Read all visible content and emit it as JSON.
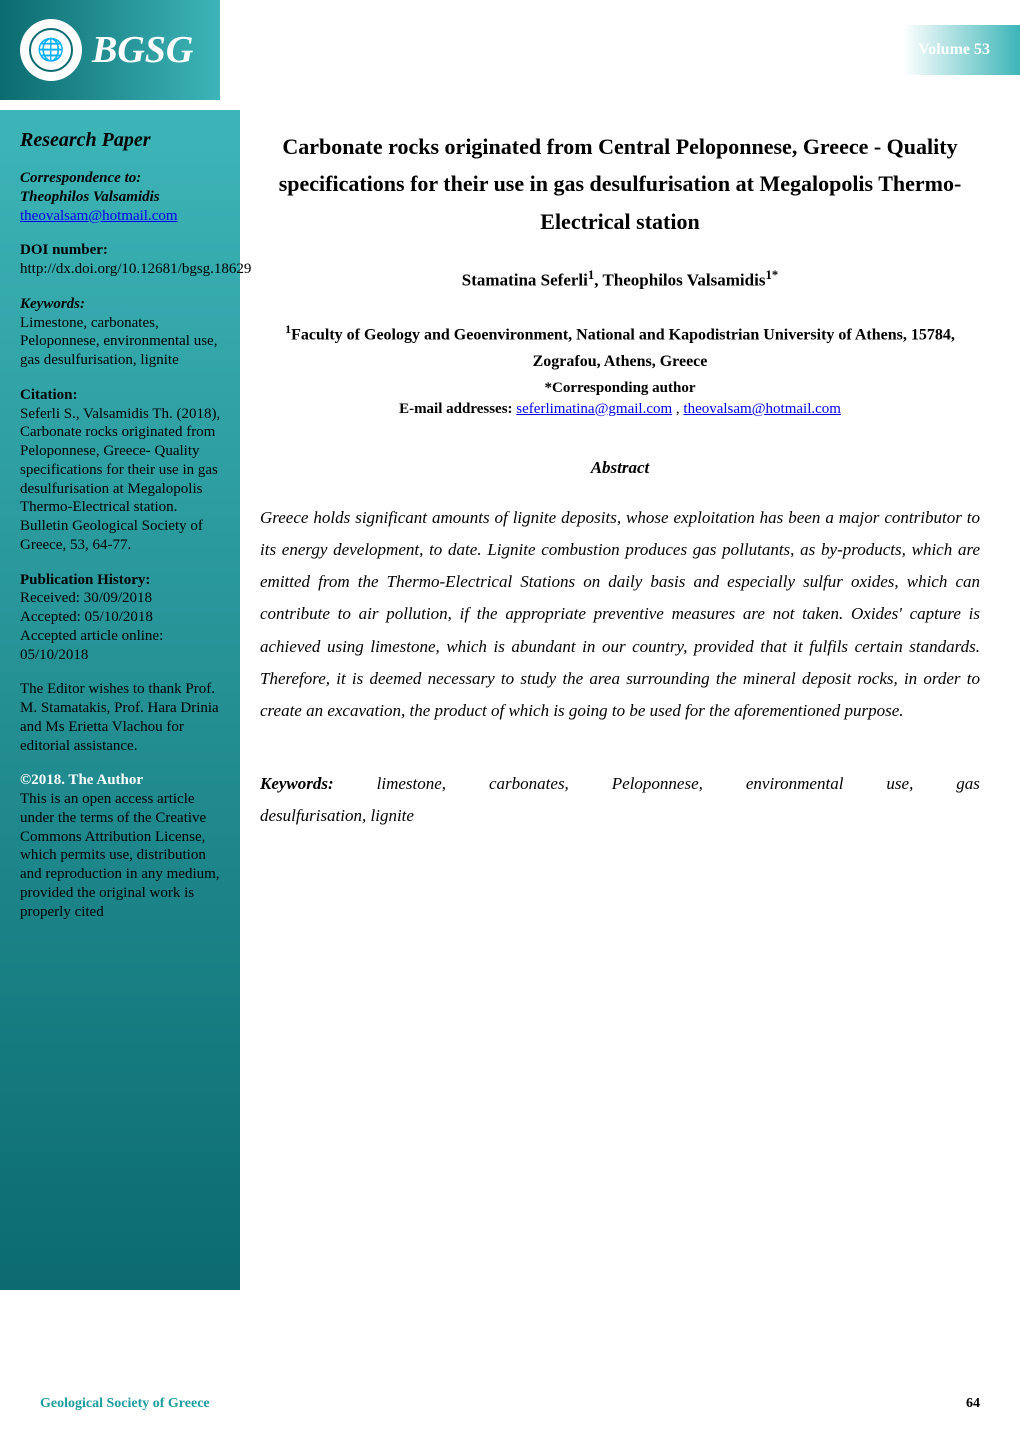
{
  "header": {
    "journal_abbrev": "BGSG",
    "volume_label": "Volume 53",
    "header_left_gradient_start": "#0b6b70",
    "header_left_gradient_end": "#3db5b8",
    "volume_bg_color": "#3db5b8",
    "volume_text_color": "#ffffff"
  },
  "sidebar": {
    "section_label": "Research Paper",
    "correspondence_label": "Correspondence to:",
    "correspondence_name": "Theophilos Valsamidis",
    "correspondence_email": "theovalsam@hotmail.com",
    "doi_label": "DOI number:",
    "doi_text": "http://dx.doi.org/10.12681/bgsg.18629",
    "keywords_label": "Keywords:",
    "keywords_text": "Limestone, carbonates, Peloponnese, environmental use, gas desulfurisation, lignite",
    "citation_label": "Citation:",
    "citation_text": "Seferli S., Valsamidis Th. (2018), Carbonate rocks originated from Peloponnese, Greece- Quality specifications for their use in gas desulfurisation at Megalopolis Thermo-Electrical station. Bulletin Geological Society of Greece, 53, 64-77.",
    "pubhist_label": "Publication History:",
    "pubhist_received": "Received: 30/09/2018",
    "pubhist_accepted": "Accepted: 05/10/2018",
    "pubhist_online_label": "Accepted article online:",
    "pubhist_online_date": "05/10/2018",
    "editor_thanks": "The Editor wishes to thank Prof. M. Stamatakis, Prof. Hara Drinia and Ms Erietta Vlachou for editorial assistance.",
    "copyright_label": "©2018. The Author",
    "license_text": "This is an open access article under the terms of the Creative Commons Attribution License, which permits use, distribution and reproduction in any medium, provided the original work is properly cited",
    "gradient_start": "#3db5b8",
    "gradient_end": "#0b6b70"
  },
  "main": {
    "title": "Carbonate rocks originated from Central Peloponnese, Greece - Quality specifications for their use in gas desulfurisation at Megalopolis Thermo-Electrical station",
    "authors_html": "Stamatina Seferli¹, Theophilos Valsamidis¹*",
    "author1_name": "Stamatina Seferli",
    "author1_sup": "1",
    "author2_name": "Theophilos Valsamidis",
    "author2_sup": "1*",
    "affiliation_sup": "1",
    "affiliation": "Faculty of Geology and Geoenvironment, National and Kapodistrian University of Athens, 15784, Zografou, Athens, Greece",
    "corresponding_label": "*Corresponding author",
    "email_label": "E-mail addresses:",
    "email1": "seferlimatina@gmail.com",
    "email2": "theovalsam@hotmail.com",
    "abstract_heading": "Abstract",
    "abstract_body": "Greece holds significant amounts of lignite deposits, whose exploitation has been a major contributor to its energy development, to date. Lignite combustion produces gas pollutants, as by-products, which are emitted from the Thermo-Electrical Stations on daily basis and especially sulfur oxides, which can contribute to air pollution, if the appropriate preventive measures are not taken. Oxides' capture is achieved using limestone, which is abundant in our country, provided that it fulfils certain standards. Therefore, it is deemed necessary to study the area surrounding the mineral deposit rocks, in order to create an excavation, the product of which is going to be used for the aforementioned purpose.",
    "keywords_label": "Keywords:",
    "keywords_line1_words": [
      "limestone,",
      "carbonates,",
      "Peloponnese,",
      "environmental",
      "use,",
      "gas"
    ],
    "keywords_line2": "desulfurisation, lignite"
  },
  "footer": {
    "left": "Geological Society of Greece",
    "page_number": "64",
    "left_color": "#1e9ca0"
  },
  "colors": {
    "link_color": "#0000ee",
    "body_text": "#000000",
    "background": "#ffffff"
  }
}
